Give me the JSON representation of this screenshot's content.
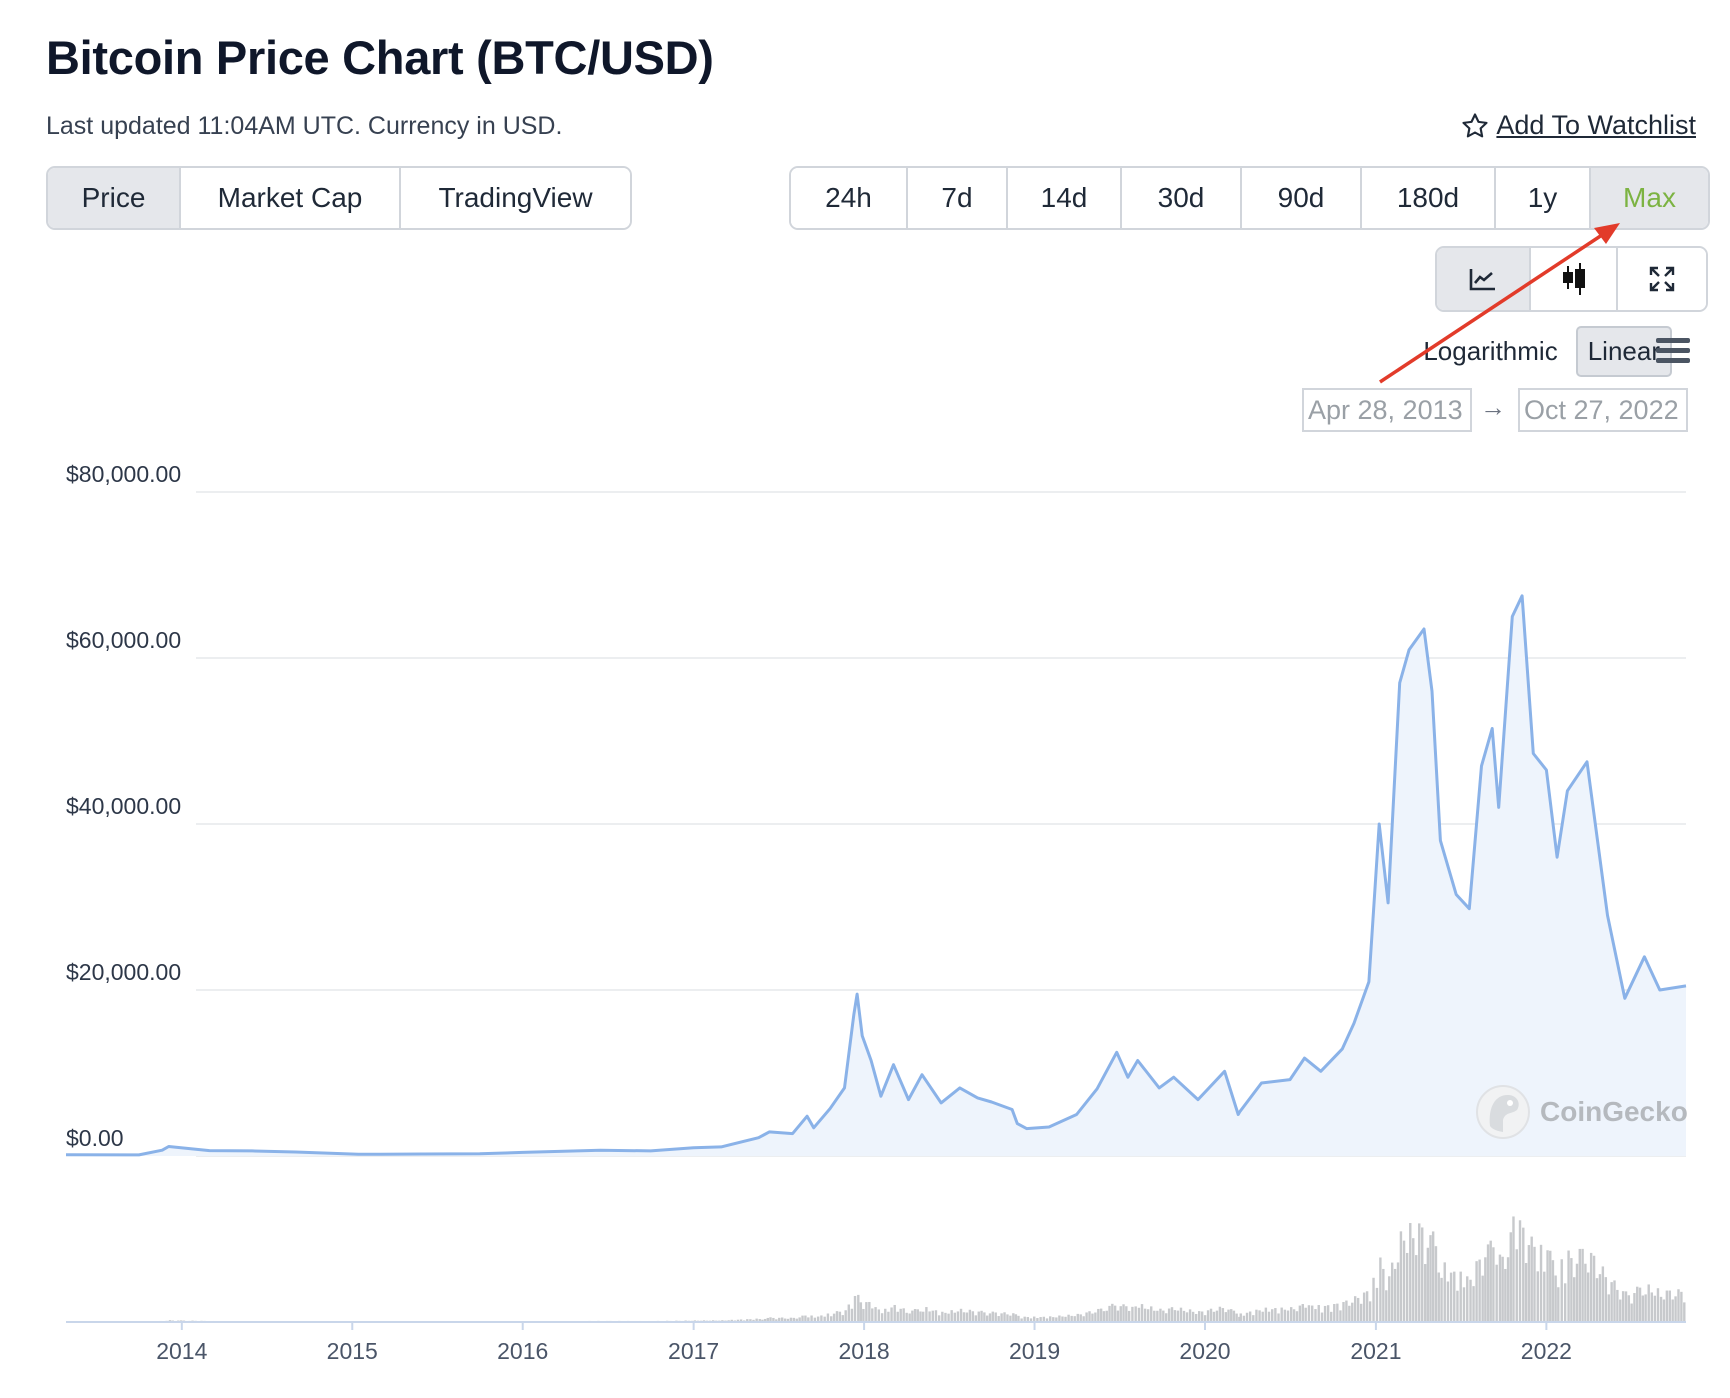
{
  "header": {
    "title": "Bitcoin Price Chart (BTC/USD)",
    "subtitle": "Last updated 11:04AM UTC. Currency in USD.",
    "watchlist_label": "Add To Watchlist"
  },
  "tabs": [
    {
      "label": "Price",
      "active": true
    },
    {
      "label": "Market Cap",
      "active": false
    },
    {
      "label": "TradingView",
      "active": false
    }
  ],
  "ranges": [
    {
      "label": "24h",
      "active": false
    },
    {
      "label": "7d",
      "active": false
    },
    {
      "label": "14d",
      "active": false
    },
    {
      "label": "30d",
      "active": false
    },
    {
      "label": "90d",
      "active": false
    },
    {
      "label": "180d",
      "active": false
    },
    {
      "label": "1y",
      "active": false
    },
    {
      "label": "Max",
      "active": true
    }
  ],
  "chart_type_buttons": [
    {
      "icon": "line-chart-icon",
      "active": true
    },
    {
      "icon": "candlestick-icon",
      "active": false
    },
    {
      "icon": "expand-icon",
      "active": false
    }
  ],
  "scale": {
    "log_label": "Logarithmic",
    "linear_label": "Linear",
    "selected": "Linear"
  },
  "date_range": {
    "from": "Apr 28, 2013",
    "to": "Oct 27, 2022"
  },
  "watermark": "CoinGecko",
  "colors": {
    "line": "#8ab2e8",
    "fill": "#eef4fc",
    "accent_green": "#7cb342",
    "volume": "#c7c9cc",
    "annotation_arrow": "#e23b2a"
  },
  "chart_data": {
    "type": "area",
    "title": "",
    "xlabel": "",
    "ylabel": "",
    "y_ticks": [
      "$80,000.00",
      "$60,000.00",
      "$40,000.00",
      "$20,000.00",
      "$0.00"
    ],
    "y_tick_values": [
      80000,
      60000,
      40000,
      20000,
      0
    ],
    "ylim": [
      0,
      80000
    ],
    "x_ticks": [
      "2014",
      "2015",
      "2016",
      "2017",
      "2018",
      "2019",
      "2020",
      "2021",
      "2022"
    ],
    "xlim": [
      "2013-04-28",
      "2022-10-27"
    ],
    "grid": true,
    "series": [
      {
        "x": [
          "2013-04-28",
          "2013-10-01",
          "2013-11-20",
          "2013-12-04",
          "2014-01-15",
          "2014-03-01",
          "2014-06-01",
          "2014-09-01",
          "2015-01-14",
          "2015-06-01",
          "2015-10-01",
          "2016-01-01",
          "2016-06-15",
          "2016-10-01",
          "2017-01-01",
          "2017-03-01",
          "2017-05-20",
          "2017-06-12",
          "2017-08-01",
          "2017-09-01",
          "2017-09-15",
          "2017-10-20",
          "2017-11-20",
          "2017-12-10",
          "2017-12-17",
          "2017-12-28",
          "2018-01-16",
          "2018-02-06",
          "2018-03-05",
          "2018-04-06",
          "2018-05-05",
          "2018-06-15",
          "2018-07-25",
          "2018-09-01",
          "2018-10-01",
          "2018-11-14",
          "2018-11-25",
          "2018-12-15",
          "2019-02-01",
          "2019-04-01",
          "2019-05-15",
          "2019-06-26",
          "2019-07-20",
          "2019-08-10",
          "2019-09-25",
          "2019-10-26",
          "2019-12-17",
          "2020-02-12",
          "2020-03-12",
          "2020-03-15",
          "2020-05-01",
          "2020-07-01",
          "2020-08-01",
          "2020-09-05",
          "2020-10-21",
          "2020-11-15",
          "2020-12-17",
          "2021-01-08",
          "2021-01-27",
          "2021-02-21",
          "2021-03-13",
          "2021-04-14",
          "2021-05-01",
          "2021-05-19",
          "2021-06-22",
          "2021-07-20",
          "2021-08-15",
          "2021-09-07",
          "2021-09-21",
          "2021-10-20",
          "2021-11-10",
          "2021-12-04",
          "2022-01-01",
          "2022-01-24",
          "2022-02-15",
          "2022-03-29",
          "2022-05-12",
          "2022-06-18",
          "2022-07-30",
          "2022-09-01",
          "2022-10-27"
        ],
        "values": [
          140,
          130,
          700,
          1150,
          900,
          650,
          620,
          480,
          200,
          240,
          260,
          430,
          700,
          620,
          1000,
          1100,
          2200,
          2900,
          2700,
          4800,
          3400,
          5700,
          8200,
          17000,
          19500,
          14500,
          11500,
          7200,
          11000,
          6800,
          9800,
          6400,
          8200,
          7000,
          6500,
          5600,
          3900,
          3300,
          3500,
          5000,
          8100,
          12500,
          9500,
          11500,
          8200,
          9500,
          6800,
          10200,
          5000,
          5300,
          8800,
          9200,
          11800,
          10200,
          12900,
          16000,
          21000,
          40000,
          30500,
          57000,
          61000,
          63500,
          56000,
          38000,
          31500,
          29800,
          47000,
          51500,
          42000,
          65000,
          67500,
          48500,
          46500,
          36000,
          44000,
          47500,
          29000,
          19000,
          24000,
          20000,
          20500
        ]
      }
    ]
  }
}
